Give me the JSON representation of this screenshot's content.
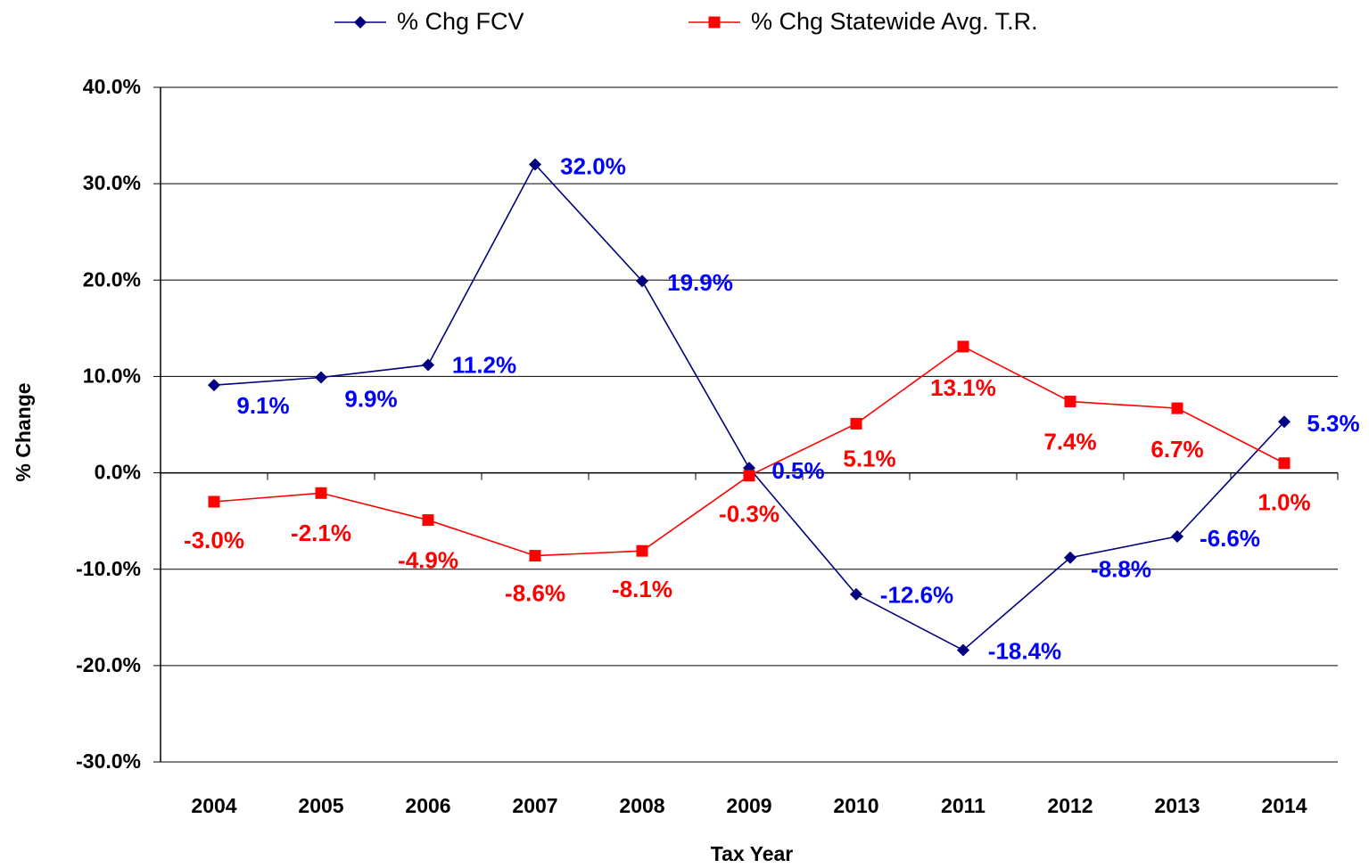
{
  "chart_data": {
    "type": "line",
    "x_label": "Tax Year",
    "y_label": "% Change",
    "categories": [
      "2004",
      "2005",
      "2006",
      "2007",
      "2008",
      "2009",
      "2010",
      "2011",
      "2012",
      "2013",
      "2014"
    ],
    "series": [
      {
        "name": "% Chg FCV",
        "color": "#000080",
        "label_color": "#0000ff",
        "marker": "diamond",
        "values": [
          9.1,
          9.9,
          11.2,
          32.0,
          19.9,
          0.5,
          -12.6,
          -18.4,
          -8.8,
          -6.6,
          5.3
        ],
        "value_labels": [
          "9.1%",
          "9.9%",
          "11.2%",
          "32.0%",
          "19.9%",
          "0.5%",
          "-12.6%",
          "-18.4%",
          "-8.8%",
          "-6.6%",
          "5.3%"
        ]
      },
      {
        "name": "% Chg Statewide Avg. T.R.",
        "color": "#ff0000",
        "label_color": "#ff0000",
        "marker": "square",
        "values": [
          -3.0,
          -2.1,
          -4.9,
          -8.6,
          -8.1,
          -0.3,
          5.1,
          13.1,
          7.4,
          6.7,
          1.0
        ],
        "value_labels": [
          "-3.0%",
          "-2.1%",
          "-4.9%",
          "-8.6%",
          "-8.1%",
          "-0.3%",
          "5.1%",
          "13.1%",
          "7.4%",
          "6.7%",
          "1.0%"
        ]
      }
    ],
    "ylim": [
      -30,
      40
    ],
    "yticks": [
      {
        "value": -30,
        "label": "-30.0%"
      },
      {
        "value": -20,
        "label": "-20.0%"
      },
      {
        "value": -10,
        "label": "-10.0%"
      },
      {
        "value": 0,
        "label": "0.0%"
      },
      {
        "value": 10,
        "label": "10.0%"
      },
      {
        "value": 20,
        "label": "20.0%"
      },
      {
        "value": 30,
        "label": "30.0%"
      },
      {
        "value": 40,
        "label": "40.0%"
      }
    ],
    "grid": true,
    "legend": "top"
  }
}
